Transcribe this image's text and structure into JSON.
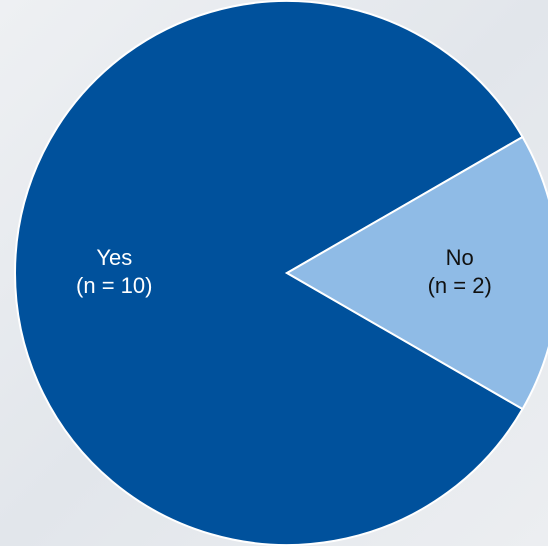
{
  "chart_data": {
    "type": "pie",
    "categories": [
      "Yes",
      "No"
    ],
    "values": [
      10,
      2
    ],
    "value_labels": [
      "(n = 10)",
      "(n = 2)"
    ],
    "colors": [
      "#00519c",
      "#8fbbe6"
    ]
  }
}
